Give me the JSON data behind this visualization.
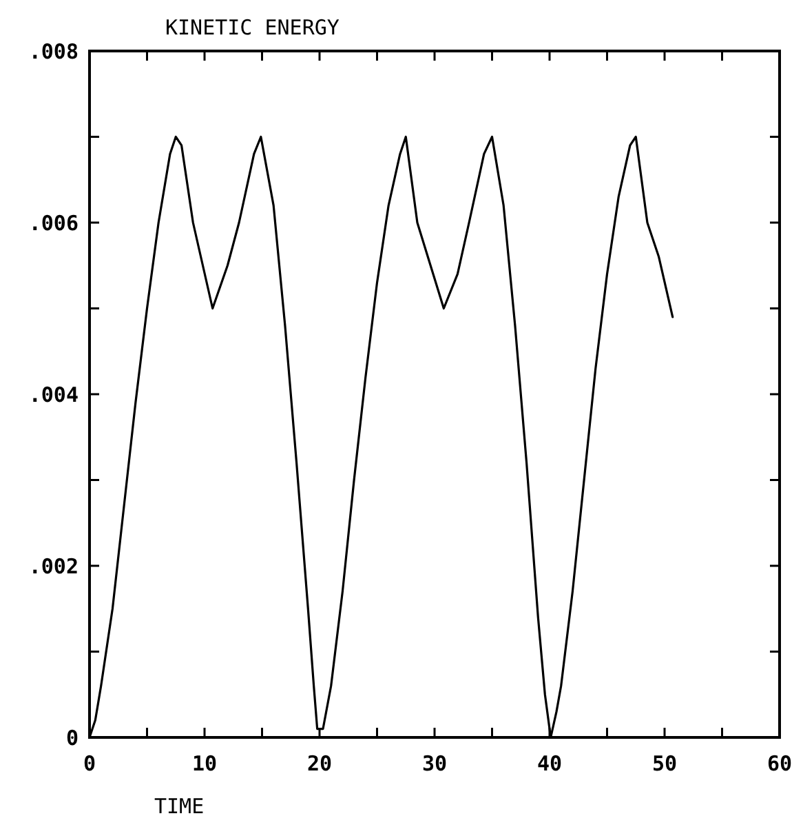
{
  "chart_data": {
    "type": "line",
    "title": "KINETIC ENERGY",
    "xlabel": "TIME",
    "x": [
      0,
      0.5,
      1,
      2,
      3,
      4,
      5,
      6,
      7,
      7.5,
      8,
      9,
      10.7,
      12,
      13,
      14.3,
      14.9,
      16,
      17,
      18,
      19,
      19.5,
      19.8,
      20.3,
      21,
      22,
      23,
      24,
      25,
      26,
      27,
      27.5,
      28.5,
      30.8,
      32,
      33,
      34.3,
      35,
      36,
      37,
      38,
      39,
      39.6,
      40.1,
      40.6,
      41,
      42,
      43,
      44,
      45,
      46,
      47,
      47.5,
      48.5,
      49.5,
      50.7
    ],
    "series": [
      {
        "color": "#000000",
        "values": [
          0,
          0.0002,
          0.0006,
          0.0015,
          0.0027,
          0.0039,
          0.005,
          0.006,
          0.0068,
          0.007,
          0.0069,
          0.006,
          0.005,
          0.0055,
          0.006,
          0.0068,
          0.007,
          0.0062,
          0.0048,
          0.0032,
          0.0015,
          0.0006,
          0.0001,
          0.0001,
          0.0006,
          0.0017,
          0.003,
          0.0042,
          0.0053,
          0.0062,
          0.0068,
          0.007,
          0.006,
          0.005,
          0.0054,
          0.006,
          0.0068,
          0.007,
          0.0062,
          0.0048,
          0.0032,
          0.0014,
          0.0005,
          0,
          0.0003,
          0.0006,
          0.0017,
          0.003,
          0.0043,
          0.0054,
          0.0063,
          0.0069,
          0.007,
          0.006,
          0.0056,
          0.0049
        ]
      }
    ],
    "xlim": [
      0,
      60
    ],
    "ylim": [
      0,
      0.008
    ],
    "xticks": [
      {
        "value": 0,
        "label": "0"
      },
      {
        "value": 5,
        "label": null
      },
      10,
      {
        "value": 15,
        "label": null
      },
      20,
      {
        "value": 25,
        "label": null
      },
      30,
      {
        "value": 35,
        "label": null
      },
      40,
      {
        "value": 45,
        "label": null
      },
      50,
      {
        "value": 55,
        "label": null
      },
      60
    ],
    "yticks": [
      {
        "value": 0,
        "label": "0"
      },
      {
        "value": 0.001,
        "label": null
      },
      {
        "value": 0.002,
        "label": ".002"
      },
      {
        "value": 0.003,
        "label": null
      },
      {
        "value": 0.004,
        "label": ".004"
      },
      {
        "value": 0.005,
        "label": null
      },
      {
        "value": 0.006,
        "label": ".006"
      },
      {
        "value": 0.007,
        "label": null
      },
      {
        "value": 0.008,
        "label": ".008"
      }
    ],
    "marker": "none",
    "line_style": "solid"
  }
}
